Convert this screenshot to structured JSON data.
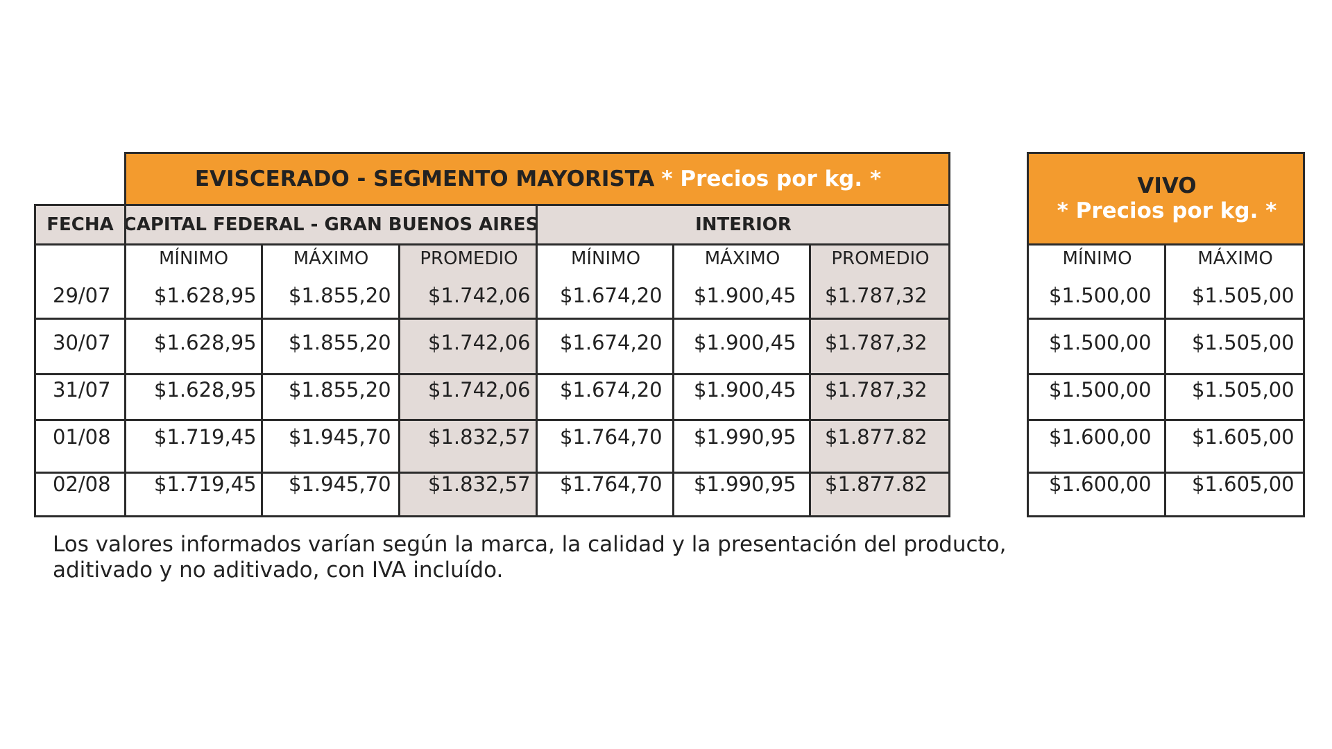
{
  "eviscerado": {
    "title": "EVISCERADO - SEGMENTO MAYORISTA",
    "title_note": "* Precios por kg. *",
    "fecha_header": "FECHA",
    "capital_header": "CAPITAL FEDERAL - GRAN BUENOS AIRES",
    "interior_header": "INTERIOR",
    "sub_headers": [
      "MÍNIMO",
      "MÁXIMO",
      "PROMEDIO",
      "MÍNIMO",
      "MÁXIMO",
      "PROMEDIO"
    ],
    "rows": [
      {
        "fecha": "29/07",
        "values": [
          "$1.628,95",
          "$1.855,20",
          "$1.742,06",
          "$1.674,20",
          "$1.900,45",
          "$1.787,32"
        ]
      },
      {
        "fecha": "30/07",
        "values": [
          "$1.628,95",
          "$1.855,20",
          "$1.742,06",
          "$1.674,20",
          "$1.900,45",
          "$1.787,32"
        ]
      },
      {
        "fecha": "31/07",
        "values": [
          "$1.628,95",
          "$1.855,20",
          "$1.742,06",
          "$1.674,20",
          "$1.900,45",
          "$1.787,32"
        ]
      },
      {
        "fecha": "01/08",
        "values": [
          "$1.719,45",
          "$1.945,70",
          "$1.832,57",
          "$1.764,70",
          "$1.990,95",
          "$1.877.82"
        ]
      },
      {
        "fecha": "02/08",
        "values": [
          "$1.719,45",
          "$1.945,70",
          "$1.832,57",
          "$1.764,70",
          "$1.990,95",
          "$1.877.82"
        ]
      }
    ]
  },
  "vivo": {
    "title": "VIVO",
    "title_note": "* Precios por kg. *",
    "sub_headers": [
      "MÍNIMO",
      "MÁXIMO"
    ],
    "rows": [
      [
        "$1.500,00",
        "$1.505,00"
      ],
      [
        "$1.500,00",
        "$1.505,00"
      ],
      [
        "$1.500,00",
        "$1.505,00"
      ],
      [
        "$1.600,00",
        "$1.605,00"
      ],
      [
        "$1.600,00",
        "$1.605,00"
      ]
    ]
  },
  "footnote": {
    "line1": "Los valores informados varían según la marca, la calidad y la presentación del producto,",
    "line2": "aditivado y no aditivado, con IVA incluído."
  },
  "colors": {
    "header_orange": "#f39b2e",
    "shade_grey": "#e3dbd8",
    "border": "#2b2b2b",
    "text": "#222222",
    "highlight_text": "#ffffff"
  }
}
